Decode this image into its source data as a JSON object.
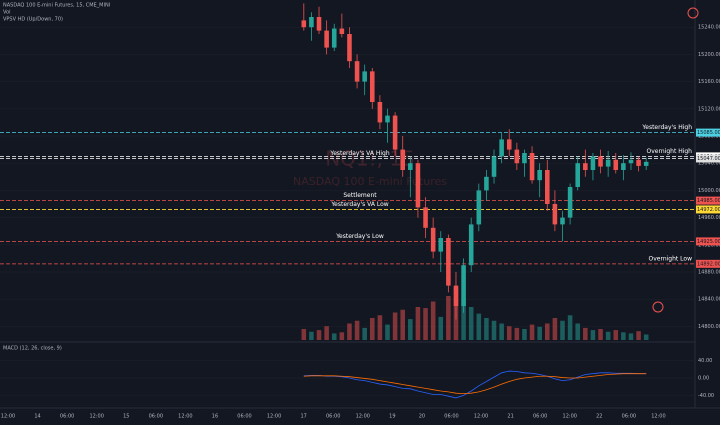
{
  "chart_data": {
    "type": "candlestick",
    "title": "NASDAQ 100 E-mini Futures, 15, CME_MINI",
    "watermark": "NQ1!, 15",
    "watermark_sub": "NASDAQ 100 E-mini Futures",
    "indicators": [
      "Vol",
      "VPSV HD (Up/Down, 70)"
    ],
    "up_color": "#26a69a",
    "down_color": "#ef5350",
    "open": [
      15250,
      15240,
      15255,
      15235,
      15210,
      15238,
      15230,
      15190,
      15160,
      15175,
      15130,
      15100,
      15110,
      15060,
      15030,
      15040,
      14975,
      14945,
      14910,
      14930,
      14860,
      14830,
      14890,
      14950,
      15000,
      15020,
      15050,
      15075,
      15060,
      15040,
      15055,
      15015,
      15030,
      14980,
      14950,
      14960,
      15005,
      15040,
      15030,
      15050,
      15035,
      15045,
      15030,
      15040,
      15045,
      15036
    ],
    "high": [
      15275,
      15262,
      15270,
      15250,
      15245,
      15260,
      15240,
      15200,
      15185,
      15180,
      15140,
      15120,
      15115,
      15080,
      15050,
      15045,
      14990,
      14960,
      14940,
      14935,
      14880,
      14900,
      14960,
      15010,
      15030,
      15060,
      15085,
      15090,
      15070,
      15060,
      15065,
      15040,
      15045,
      15000,
      14970,
      15010,
      15050,
      15060,
      15055,
      15060,
      15058,
      15055,
      15052,
      15056,
      15050,
      15048
    ],
    "low": [
      15235,
      15220,
      15230,
      15200,
      15205,
      15225,
      15180,
      15150,
      15140,
      15120,
      15090,
      15070,
      15050,
      15020,
      14990,
      14960,
      14930,
      14900,
      14880,
      14850,
      14810,
      14820,
      14880,
      14940,
      14985,
      15010,
      15040,
      15050,
      15030,
      15020,
      15010,
      14990,
      14970,
      14940,
      14925,
      14950,
      15000,
      15020,
      15015,
      15025,
      15020,
      15025,
      15015,
      15030,
      15028,
      15030
    ],
    "close": [
      15240,
      15255,
      15235,
      15210,
      15238,
      15230,
      15190,
      15160,
      15175,
      15130,
      15100,
      15110,
      15060,
      15030,
      15040,
      14975,
      14945,
      14910,
      14930,
      14860,
      14830,
      14890,
      14950,
      15000,
      15020,
      15050,
      15075,
      15060,
      15040,
      15055,
      15015,
      15030,
      14980,
      14950,
      14960,
      15005,
      15040,
      15030,
      15050,
      15035,
      15045,
      15030,
      15040,
      15045,
      15036,
      15042
    ],
    "ylim": [
      14780,
      15280
    ],
    "yticks": [
      {
        "value": 14800,
        "label": "14800.00"
      },
      {
        "value": 14840,
        "label": "14840.00"
      },
      {
        "value": 14880,
        "label": "14880.00"
      },
      {
        "value": 14920,
        "label": "14920.00"
      },
      {
        "value": 14960,
        "label": "14960.00"
      },
      {
        "value": 15000,
        "label": "15000.00"
      },
      {
        "value": 15040,
        "label": "15040.00"
      },
      {
        "value": 15080,
        "label": "15080.00"
      },
      {
        "value": 15120,
        "label": "15120.00"
      },
      {
        "value": 15160,
        "label": "15160.00"
      },
      {
        "value": 15200,
        "label": "15200.00"
      },
      {
        "value": 15240,
        "label": "15240.00"
      }
    ],
    "levels": [
      {
        "label": "Yesterday's High",
        "value": 15085,
        "value_label": "15085.00",
        "color": "#4dd0e1"
      },
      {
        "label": "Overnight High",
        "value": 15050,
        "value_label": "15050.00",
        "color": "#ffffff"
      },
      {
        "label": "Yesterday's VA High",
        "value": 15047,
        "value_label": "15047.00",
        "color": "#e0e0e0"
      },
      {
        "label": "Settlement",
        "value": 14985,
        "value_label": "14985.00",
        "color": "#ef5350"
      },
      {
        "label": "Yesterday's VA Low",
        "value": 14972,
        "value_label": "14972.00",
        "color": "#fdd835"
      },
      {
        "label": "Yesterday's Low",
        "value": 14925,
        "value_label": "14925.00",
        "color": "#ef5350"
      },
      {
        "label": "Overnight Low",
        "value": 14892,
        "value_label": "14892.00",
        "color": "#ef5350"
      }
    ],
    "volume": {
      "ylim": [
        0,
        100
      ],
      "values": [
        20,
        15,
        18,
        25,
        12,
        14,
        30,
        35,
        22,
        40,
        45,
        28,
        50,
        55,
        38,
        60,
        58,
        70,
        42,
        80,
        95,
        75,
        60,
        48,
        40,
        35,
        30,
        25,
        22,
        20,
        28,
        24,
        30,
        40,
        35,
        45,
        30,
        22,
        18,
        20,
        15,
        18,
        14,
        12,
        16,
        10
      ]
    },
    "macd": {
      "title": "MACD (12, 26, close, 9)",
      "ylim": [
        -60,
        60
      ],
      "yticks": [
        {
          "value": 40,
          "label": "40.00"
        },
        {
          "value": 0,
          "label": "0.00"
        },
        {
          "value": -40,
          "label": "-40.00"
        }
      ],
      "series": [
        {
          "name": "MACD",
          "color": "#2962ff",
          "values": [
            5,
            6,
            6,
            4,
            4,
            3,
            0,
            -4,
            -6,
            -10,
            -14,
            -16,
            -20,
            -24,
            -25,
            -30,
            -34,
            -38,
            -38,
            -42,
            -46,
            -40,
            -30,
            -18,
            -8,
            2,
            12,
            16,
            15,
            12,
            11,
            8,
            4,
            -2,
            -6,
            -4,
            2,
            8,
            10,
            12,
            12,
            11,
            11,
            11,
            10,
            10
          ]
        },
        {
          "name": "Signal",
          "color": "#ff6d00",
          "values": [
            4,
            5,
            5,
            5,
            5,
            4,
            3,
            1,
            -1,
            -3,
            -6,
            -9,
            -12,
            -15,
            -18,
            -21,
            -24,
            -27,
            -30,
            -32,
            -35,
            -36,
            -35,
            -32,
            -27,
            -21,
            -14,
            -8,
            -3,
            0,
            2,
            4,
            4,
            3,
            1,
            0,
            0,
            2,
            4,
            6,
            8,
            9,
            10,
            10,
            10,
            10
          ]
        }
      ]
    },
    "time_labels": [
      "12:00",
      "14",
      "06:00",
      "12:00",
      "15",
      "06:00",
      "12:00",
      "16",
      "06:00",
      "12:00",
      "17",
      "06:00",
      "12:00",
      "19",
      "20",
      "06:00",
      "12:00",
      "21",
      "06:00",
      "12:00",
      "22",
      "06:00",
      "12:00"
    ]
  }
}
